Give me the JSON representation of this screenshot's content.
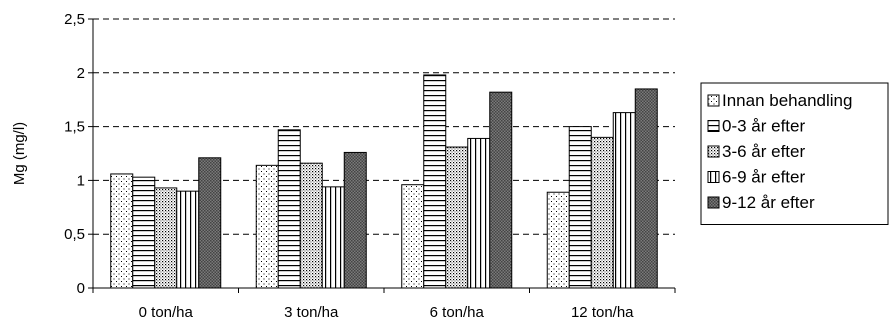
{
  "chart_data": {
    "type": "bar",
    "ylabel": "Mg (mg/l)",
    "xlabel": "",
    "ylim": [
      0,
      2.5
    ],
    "yticks": [
      0,
      0.5,
      1,
      1.5,
      2,
      2.5
    ],
    "ytick_labels": [
      "0",
      "0,5",
      "1",
      "1,5",
      "2",
      "2,5"
    ],
    "grid": "horizontal-dashed",
    "legend_position": "right",
    "categories": [
      "0 ton/ha",
      "3 ton/ha",
      "6 ton/ha",
      "12 ton/ha"
    ],
    "series": [
      {
        "name": "Innan behandling",
        "pattern": "dots",
        "values": [
          1.06,
          1.14,
          0.96,
          0.89
        ]
      },
      {
        "name": "0-3 år efter",
        "pattern": "horizontal-lines",
        "values": [
          1.03,
          1.47,
          1.98,
          1.5
        ]
      },
      {
        "name": "3-6 år efter",
        "pattern": "dense-dots",
        "values": [
          0.93,
          1.16,
          1.31,
          1.4
        ]
      },
      {
        "name": "6-9 år efter",
        "pattern": "vertical-lines",
        "values": [
          0.9,
          0.94,
          1.39,
          1.63
        ]
      },
      {
        "name": "9-12 år efter",
        "pattern": "dark-grid",
        "values": [
          1.21,
          1.26,
          1.82,
          1.85
        ]
      }
    ]
  }
}
